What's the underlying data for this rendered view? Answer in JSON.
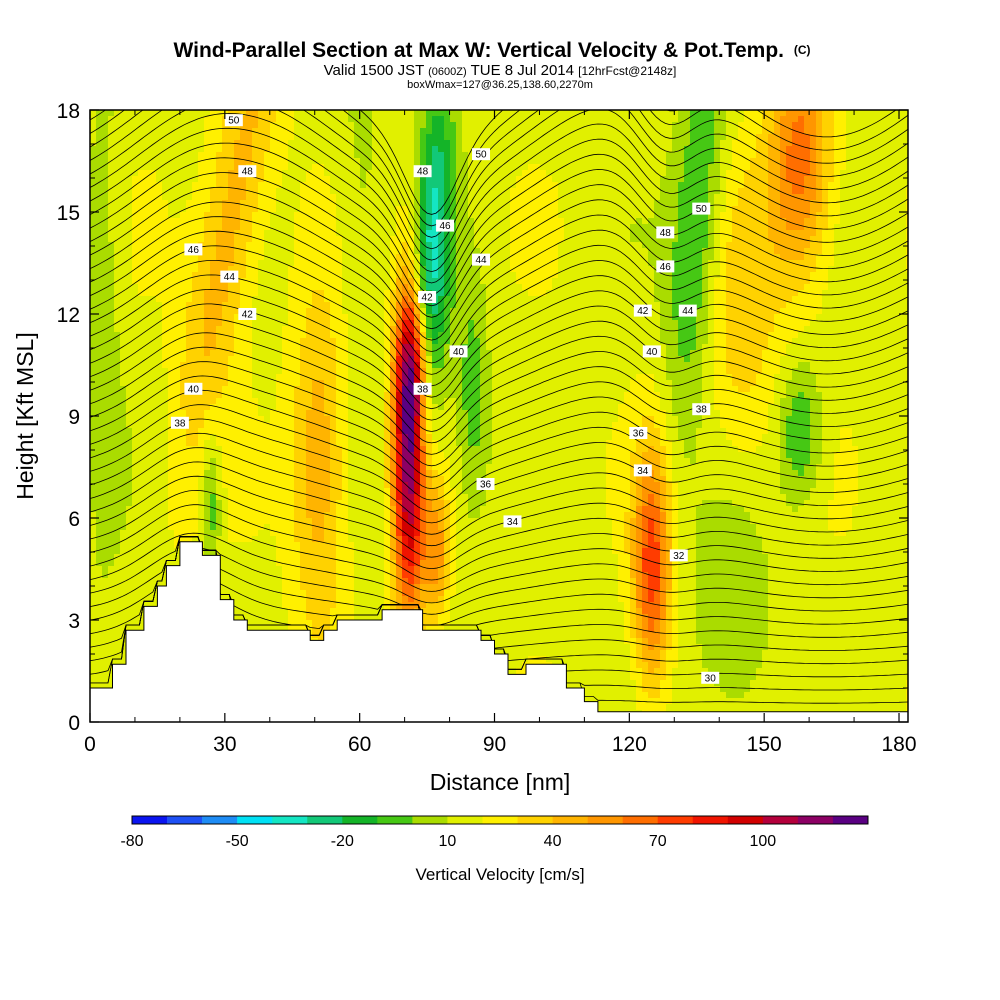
{
  "chart_data": {
    "type": "heatmap",
    "title": "Wind-Parallel Section at Max W: Vertical Velocity & Pot.Temp.",
    "title_mark": "(C)",
    "subtitle": {
      "valid": "Valid 1500 JST",
      "utc": "(0600Z)",
      "date": "TUE 8 Jul 2014",
      "fcst": "[12hrFcst@2148z]"
    },
    "subtitle2": "boxWmax=127@36.25,138.60,2270m",
    "xlabel": "Distance [nm]",
    "ylabel": "Height [Kft MSL]",
    "xlim": [
      0,
      182
    ],
    "ylim": [
      0,
      18
    ],
    "xticks": [
      0,
      30,
      60,
      90,
      120,
      150,
      180
    ],
    "xtick_labels": [
      "0",
      "30",
      "60",
      "90",
      "120",
      "150",
      "180"
    ],
    "yticks": [
      0,
      3,
      6,
      9,
      12,
      15,
      18
    ],
    "ytick_labels": [
      "0",
      "3",
      "6",
      "9",
      "12",
      "15",
      "18"
    ],
    "colorbar": {
      "title": "Vertical Velocity [cm/s]",
      "colors": [
        "#0a14f0",
        "#1e50f5",
        "#1e8cf5",
        "#00e1f5",
        "#14e6c3",
        "#12c878",
        "#14b428",
        "#46c814",
        "#aadc00",
        "#e1f000",
        "#fff000",
        "#ffd200",
        "#ffb400",
        "#ff9600",
        "#ff6e00",
        "#ff3c00",
        "#f01400",
        "#d20000",
        "#b4003c",
        "#8c0064",
        "#5a0082"
      ],
      "tick_labels": [
        "-80",
        "-50",
        "-20",
        "10",
        "40",
        "70",
        "100"
      ]
    },
    "terrain": [
      [
        0,
        1
      ],
      [
        5,
        1
      ],
      [
        5,
        1.7
      ],
      [
        8,
        1.7
      ],
      [
        8,
        2.7
      ],
      [
        12,
        2.7
      ],
      [
        12,
        3.4
      ],
      [
        15,
        3.4
      ],
      [
        15,
        4
      ],
      [
        17,
        4
      ],
      [
        17,
        4.6
      ],
      [
        20,
        4.6
      ],
      [
        20,
        5.3
      ],
      [
        25,
        5.3
      ],
      [
        25,
        4.9
      ],
      [
        29,
        4.9
      ],
      [
        29,
        3.6
      ],
      [
        32,
        3.6
      ],
      [
        32,
        3
      ],
      [
        35,
        3
      ],
      [
        35,
        2.7
      ],
      [
        49,
        2.7
      ],
      [
        49,
        2.4
      ],
      [
        52,
        2.4
      ],
      [
        52,
        2.7
      ],
      [
        55,
        2.7
      ],
      [
        55,
        3
      ],
      [
        65,
        3
      ],
      [
        65,
        3.3
      ],
      [
        74,
        3.3
      ],
      [
        74,
        2.7
      ],
      [
        87,
        2.7
      ],
      [
        87,
        2.4
      ],
      [
        90,
        2.4
      ],
      [
        90,
        2
      ],
      [
        93,
        2
      ],
      [
        93,
        1.4
      ],
      [
        97,
        1.4
      ],
      [
        97,
        1.7
      ],
      [
        106,
        1.7
      ],
      [
        106,
        1
      ],
      [
        110,
        1
      ],
      [
        110,
        0.6
      ],
      [
        113,
        0.6
      ],
      [
        113,
        0.3
      ],
      [
        182,
        0.3
      ]
    ],
    "w_field": [
      {
        "x": 31,
        "y": 14.5,
        "sx": 5,
        "sy": 5,
        "w": 32,
        "tilt": 8
      },
      {
        "x": 51,
        "y": 7.5,
        "sx": 4.5,
        "sy": 3.5,
        "w": 34,
        "tilt": 0
      },
      {
        "x": 71,
        "y": 8,
        "sx": 2.5,
        "sy": 3.5,
        "w": 105,
        "tilt": 0
      },
      {
        "x": 72,
        "y": 10.5,
        "sx": 2.5,
        "sy": 1.5,
        "w": 40,
        "tilt": 0
      },
      {
        "x": 77,
        "y": 5,
        "sx": 2,
        "sy": 1.5,
        "w": 38,
        "tilt": 0
      },
      {
        "x": 125,
        "y": 4.5,
        "sx": 3,
        "sy": 2.5,
        "w": 60,
        "tilt": 0
      },
      {
        "x": 158,
        "y": 16.5,
        "sx": 5,
        "sy": 2.5,
        "w": 50,
        "tilt": 0
      },
      {
        "x": 145,
        "y": 11.5,
        "sx": 6,
        "sy": 3.5,
        "w": 20,
        "tilt": 0
      },
      {
        "x": 76,
        "y": 13.5,
        "sx": 3,
        "sy": 4,
        "w": -48,
        "tilt": 2
      },
      {
        "x": 135,
        "y": 14.5,
        "sx": 4,
        "sy": 4,
        "w": -30,
        "tilt": 3
      },
      {
        "x": 158,
        "y": 8.5,
        "sx": 3.5,
        "sy": 1.5,
        "w": -28,
        "tilt": 0
      },
      {
        "x": 27,
        "y": 6.5,
        "sx": 1.5,
        "sy": 1.5,
        "w": -25,
        "tilt": 0
      },
      {
        "x": 85,
        "y": 9.5,
        "sx": 2.5,
        "sy": 2.5,
        "w": -22,
        "tilt": 0
      },
      {
        "x": 143,
        "y": 3,
        "sx": 6,
        "sy": 2.5,
        "w": -18,
        "tilt": 0
      },
      {
        "x": 3,
        "y": 12,
        "sx": 3,
        "sy": 6,
        "w": -12,
        "tilt": 0
      },
      {
        "x": 60,
        "y": 15,
        "sx": 4,
        "sy": 4,
        "w": -10,
        "tilt": 0
      }
    ],
    "w_background": 6,
    "contour_labels": [
      {
        "x": 32,
        "y": 17.7,
        "text": "50"
      },
      {
        "x": 35,
        "y": 16.2,
        "text": "48"
      },
      {
        "x": 23,
        "y": 13.9,
        "text": "46"
      },
      {
        "x": 31,
        "y": 13.1,
        "text": "44"
      },
      {
        "x": 35,
        "y": 12,
        "text": "42"
      },
      {
        "x": 23,
        "y": 9.8,
        "text": "40"
      },
      {
        "x": 20,
        "y": 8.8,
        "text": "38"
      },
      {
        "x": 87,
        "y": 16.7,
        "text": "50"
      },
      {
        "x": 74,
        "y": 16.2,
        "text": "48"
      },
      {
        "x": 79,
        "y": 14.6,
        "text": "46"
      },
      {
        "x": 87,
        "y": 13.6,
        "text": "44"
      },
      {
        "x": 75,
        "y": 12.5,
        "text": "42"
      },
      {
        "x": 82,
        "y": 10.9,
        "text": "40"
      },
      {
        "x": 74,
        "y": 9.8,
        "text": "38"
      },
      {
        "x": 88,
        "y": 7,
        "text": "36"
      },
      {
        "x": 94,
        "y": 5.9,
        "text": "34"
      },
      {
        "x": 136,
        "y": 15.1,
        "text": "50"
      },
      {
        "x": 128,
        "y": 14.4,
        "text": "48"
      },
      {
        "x": 128,
        "y": 13.4,
        "text": "46"
      },
      {
        "x": 133,
        "y": 12.1,
        "text": "44"
      },
      {
        "x": 123,
        "y": 12.1,
        "text": "42"
      },
      {
        "x": 125,
        "y": 10.9,
        "text": "40"
      },
      {
        "x": 136,
        "y": 9.2,
        "text": "38"
      },
      {
        "x": 122,
        "y": 8.5,
        "text": "36"
      },
      {
        "x": 123,
        "y": 7.4,
        "text": "34"
      },
      {
        "x": 131,
        "y": 4.9,
        "text": "32"
      },
      {
        "x": 138,
        "y": 1.3,
        "text": "30"
      }
    ]
  }
}
